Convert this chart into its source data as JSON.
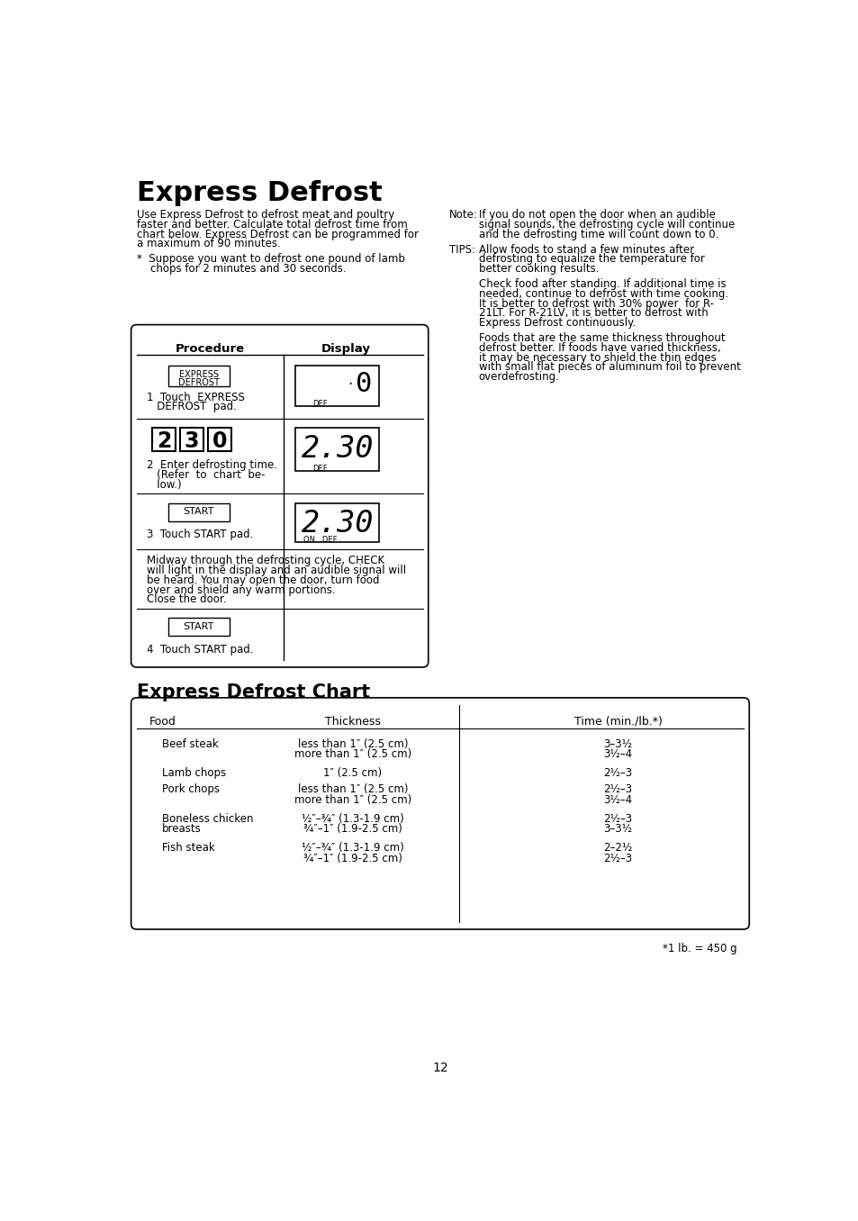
{
  "title": "Express Defrost",
  "main_lines": [
    "Use Express Defrost to defrost meat and poultry",
    "faster and better. Calculate total defrost time from",
    "chart below. Express Defrost can be programmed for",
    "a maximum of 90 minutes."
  ],
  "star_line1": "*  Suppose you want to defrost one pound of lamb",
  "star_line2": "    chops for 2 minutes and 30 seconds.",
  "note_label": "Note:",
  "note_lines": [
    "If you do not open the door when an audible",
    "signal sounds, the defrosting cycle will continue",
    "and the defrosting time will count down to 0."
  ],
  "tips_label": "TIPS:",
  "tips_lines1": [
    "Allow foods to stand a few minutes after",
    "defrosting to equalize the temperature for",
    "better cooking results."
  ],
  "tips_lines2": [
    "Check food after standing. If additional time is",
    "needed, continue to defrost with time cooking.",
    "It is better to defrost with 30% power  for R-",
    "21LT. For R-21LV, it is better to defrost with",
    "Express Defrost continuously."
  ],
  "tips_lines3": [
    "Foods that are the same thickness throughout",
    "defrost better. If foods have varied thickness,",
    "it may be necessary to shield the thin edges",
    "with small flat pieces of aluminum foil to prevent",
    "overdefrosting."
  ],
  "proc_header": "Procedure",
  "disp_header": "Display",
  "step1_btn_line1": "EXPRESS",
  "step1_btn_line2": "DEFROST",
  "step1_text_line1": "1  Touch  EXPRESS",
  "step1_text_line2": "   DEFROST  pad.",
  "step2_digits": [
    "2",
    "3",
    "0"
  ],
  "step2_text_line1": "2  Enter defrosting time.",
  "step2_text_line2": "   (Refer  to  chart  be-",
  "step2_text_line3": "   low.)",
  "step2_display": "2.30",
  "step3_btn": "START",
  "step3_text": "3  Touch START pad.",
  "step3_display": "2.30",
  "midway_lines": [
    "Midway through the defrosting cycle, CHECK",
    "will light in the display and an audible signal will",
    "be heard. You may open the door, turn food",
    "over and shield any warm portions.",
    "Close the door."
  ],
  "step4_btn": "START",
  "step4_text": "4  Touch START pad.",
  "chart_title": "Express Defrost Chart",
  "chart_col1": "Food",
  "chart_col2": "Thickness",
  "chart_col3": "Time (min./lb.*)",
  "chart_rows": [
    [
      "Beef steak",
      "less than 1″ (2.5 cm)\nmore than 1″ (2.5 cm)",
      "3–3½\n3½–4"
    ],
    [
      "Lamb chops",
      "1″ (2.5 cm)",
      "2½–3"
    ],
    [
      "Pork chops",
      "less than 1″ (2.5 cm)\nmore than 1″ (2.5 cm)",
      "2½–3\n3½–4"
    ],
    [
      "Boneless chicken\nbreasts",
      "½″–¾″ (1.3-1.9 cm)\n¾″–1″ (1.9-2.5 cm)",
      "2½–3\n3–3½"
    ],
    [
      "Fish steak",
      "½″–¾″ (1.3-1.9 cm)\n¾″–1″ (1.9-2.5 cm)",
      "2–2½\n2½–3"
    ]
  ],
  "chart_footnote": "*1 lb. = 450 g",
  "page_number": "12",
  "bg_color": "#ffffff",
  "text_color": "#000000"
}
